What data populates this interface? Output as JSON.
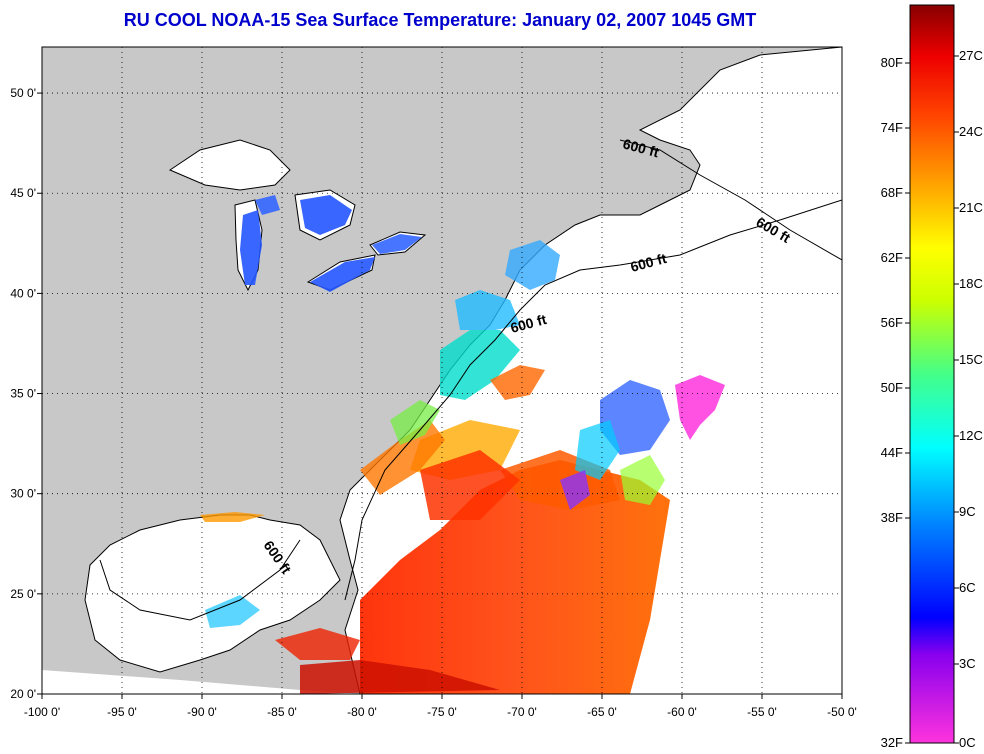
{
  "title": "RU COOL  NOAA-15  Sea Surface Temperature:  January 02, 2007 1045 GMT",
  "axes": {
    "lon_labels": [
      "-100 0'",
      "-95 0'",
      "-90 0'",
      "-85 0'",
      "-80 0'",
      "-75 0'",
      "-70 0'",
      "-65 0'",
      "-60 0'",
      "-55 0'",
      "-50 0'"
    ],
    "lat_labels": [
      "50 0'",
      "45 0'",
      "40 0'",
      "35 0'",
      "30 0'",
      "25 0'",
      "20 0'"
    ]
  },
  "isobath_labels": [
    "600 ft",
    "600 ft",
    "600 ft",
    "600 ft",
    "600 ft"
  ],
  "colorbar": {
    "fahrenheit": [
      "80F",
      "74F",
      "68F",
      "62F",
      "56F",
      "50F",
      "44F",
      "38F",
      "32F"
    ],
    "celsius": [
      "27C",
      "24C",
      "21C",
      "18C",
      "15C",
      "12C",
      "9C",
      "6C",
      "3C",
      "0C"
    ]
  },
  "colors": {
    "land": "#c8c8c8",
    "sea_no_data": "#ffffff",
    "title": "#0000cc"
  }
}
